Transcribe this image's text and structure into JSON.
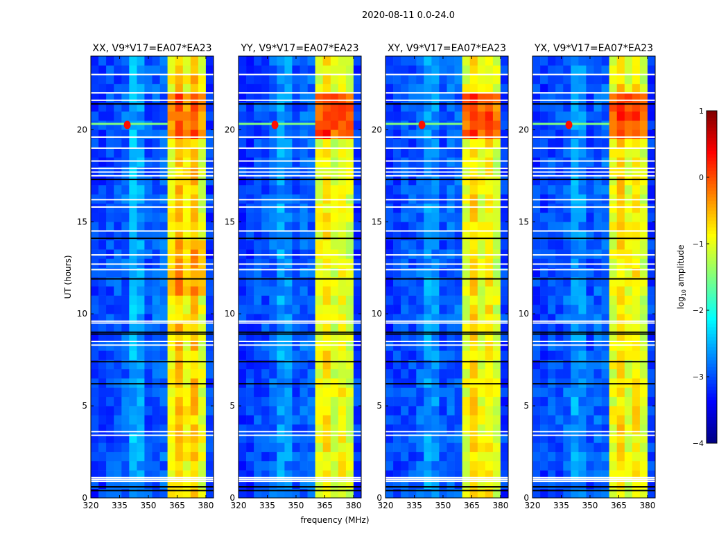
{
  "chart_data": {
    "type": "heatmap",
    "title": "2020-08-11 0.0-24.0",
    "xlabel": "frequency (MHz)",
    "ylabel": "UT (hours)",
    "xlim": [
      320,
      384
    ],
    "ylim": [
      0,
      24
    ],
    "xticks": [
      "320",
      "335",
      "350",
      "365",
      "380"
    ],
    "xtick_values": [
      320,
      335,
      350,
      365,
      380
    ],
    "yticks": [
      "0",
      "5",
      "10",
      "15",
      "20"
    ],
    "ytick_values": [
      0,
      5,
      10,
      15,
      20
    ],
    "colorbar": {
      "label": "log10 amplitude",
      "label_main": "log",
      "label_sub": "10",
      "label_rest": " amplitude",
      "range": [
        -4,
        1
      ],
      "ticks": [
        "1",
        "0",
        "−1",
        "−2",
        "−3",
        "−4"
      ],
      "tick_values": [
        1,
        0,
        -1,
        -2,
        -3,
        -4
      ],
      "colormap": "jet"
    },
    "freq_bins_mhz": [
      320,
      324,
      328,
      332,
      336,
      340,
      344,
      348,
      352,
      356,
      360,
      364,
      368,
      372,
      376,
      380,
      384
    ],
    "time_bin_hours": 0.5,
    "panels": [
      {
        "title": "XX, V9*V17=EA07*EA23",
        "freq_profile": [
          -3.1,
          -3.1,
          -3.0,
          -3.0,
          -2.9,
          -2.5,
          -2.6,
          -3.0,
          -2.9,
          -2.9,
          -0.9,
          -0.6,
          -0.9,
          -0.6,
          -1.0,
          -3.1
        ],
        "band_boost_hours": [
          [
            19.5,
            22,
            0.6
          ],
          [
            11,
            14,
            0.3
          ]
        ]
      },
      {
        "title": "YY, V9*V17=EA07*EA23",
        "freq_profile": [
          -3.1,
          -3.1,
          -3.0,
          -3.0,
          -2.9,
          -2.6,
          -2.7,
          -3.0,
          -2.9,
          -2.9,
          -1.0,
          -0.8,
          -1.1,
          -0.9,
          -1.1,
          -3.1
        ],
        "band_boost_hours": [
          [
            19.5,
            22,
            1.0
          ]
        ]
      },
      {
        "title": "XY, V9*V17=EA07*EA23",
        "freq_profile": [
          -3.1,
          -3.1,
          -3.0,
          -3.0,
          -2.9,
          -2.6,
          -2.7,
          -3.0,
          -2.9,
          -2.9,
          -1.0,
          -0.7,
          -1.0,
          -0.8,
          -1.1,
          -3.1
        ],
        "band_boost_hours": [
          [
            19.5,
            22,
            0.9
          ]
        ]
      },
      {
        "title": "YX, V9*V17=EA07*EA23",
        "freq_profile": [
          -3.1,
          -3.1,
          -3.0,
          -3.0,
          -2.9,
          -2.6,
          -2.7,
          -3.0,
          -2.9,
          -2.9,
          -1.0,
          -0.7,
          -1.0,
          -0.8,
          -1.1,
          -3.1
        ],
        "band_boost_hours": [
          [
            19.5,
            22,
            0.9
          ]
        ]
      }
    ],
    "rfi_flash": {
      "hour": 20.3,
      "freq_range_mhz": [
        320,
        360
      ],
      "value": -1.5
    },
    "flagged_white_hours": [
      0.9,
      1.0,
      1.1,
      3.4,
      3.6,
      8.3,
      8.5,
      9.5,
      9.6,
      12.4,
      12.7,
      13.2,
      14.5,
      15.8,
      16.2,
      17.5,
      17.7,
      17.9,
      18.3,
      19.0,
      19.6,
      21.6,
      22.0,
      23.0
    ],
    "flagged_black_hours": [
      0.4,
      0.6,
      6.2,
      7.4,
      8.9,
      9.0,
      11.9,
      14.1,
      17.3,
      21.4
    ]
  }
}
